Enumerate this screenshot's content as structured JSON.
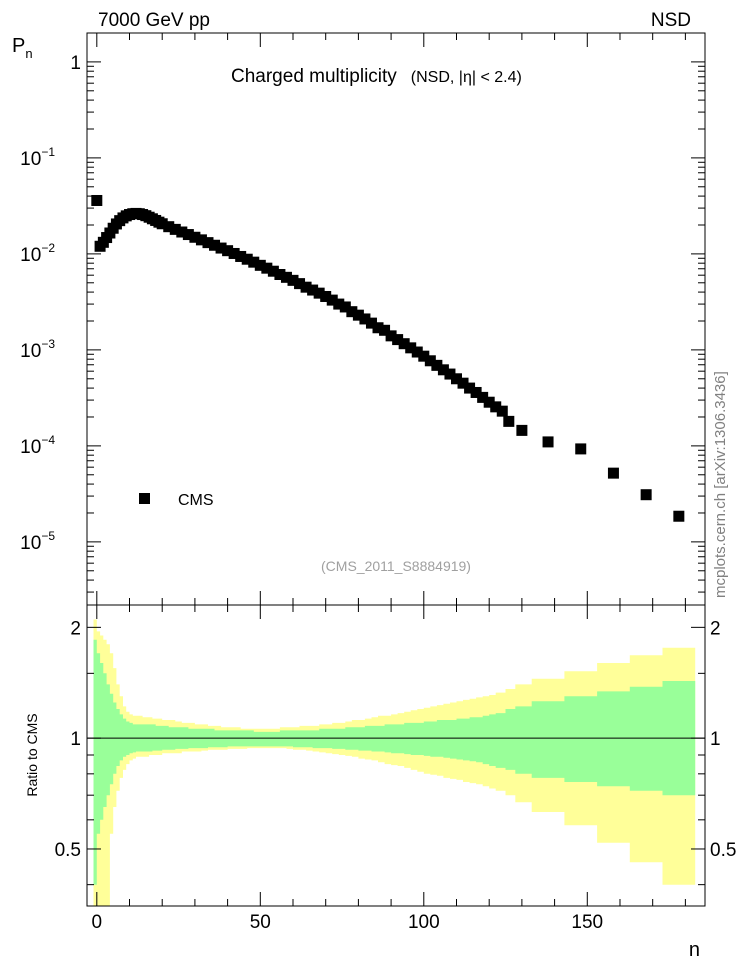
{
  "header": {
    "left_label": "7000 GeV pp",
    "right_label": "NSD"
  },
  "side_label": "mcplots.cern.ch [arXiv:1306.3436]",
  "main_panel": {
    "title_main": "Charged multiplicity",
    "title_sub": "(NSD, |η| < 2.4)",
    "analysis_tag": "(CMS_2011_S8884919)",
    "y_axis_label": {
      "base": "P",
      "sub": "n"
    },
    "y_ticks": [
      {
        "value": 1,
        "label": "1"
      },
      {
        "value": 0.1,
        "base": "10",
        "exp": "−1"
      },
      {
        "value": 0.01,
        "base": "10",
        "exp": "−2"
      },
      {
        "value": 0.001,
        "base": "10",
        "exp": "−3"
      },
      {
        "value": 0.0001,
        "base": "10",
        "exp": "−4"
      },
      {
        "value": 1e-05,
        "base": "10",
        "exp": "−5"
      }
    ],
    "legend_label": "CMS"
  },
  "ratio_panel": {
    "y_axis_label": "Ratio to CMS",
    "y_ticks": [
      "0.5",
      "1",
      "2"
    ],
    "x_ticks": [
      "0",
      "50",
      "100",
      "150"
    ],
    "x_axis_label": "n",
    "colors": {
      "inner_band": "#99ff99",
      "outer_band": "#ffff99",
      "reference": "#000000"
    }
  },
  "chart_data": {
    "type": "scatter",
    "title": "Charged multiplicity",
    "xlabel": "n",
    "ylabel": "P_n",
    "y_scale": "log",
    "xlim": [
      -3,
      186
    ],
    "ylim": [
      2.2e-06,
      2.0
    ],
    "legend_position": "lower-left",
    "series": [
      {
        "name": "CMS",
        "marker": "square",
        "color": "#000000",
        "x": [
          0,
          1,
          2,
          3,
          4,
          5,
          6,
          7,
          8,
          9,
          10,
          11,
          12,
          13,
          14,
          15,
          16,
          17,
          18,
          19,
          20,
          22,
          24,
          26,
          28,
          30,
          32,
          34,
          36,
          38,
          40,
          42,
          44,
          46,
          48,
          50,
          52,
          54,
          56,
          58,
          60,
          62,
          64,
          66,
          68,
          70,
          72,
          74,
          76,
          78,
          80,
          82,
          84,
          86,
          88,
          90,
          92,
          94,
          96,
          98,
          100,
          102,
          104,
          106,
          108,
          110,
          112,
          114,
          116,
          118,
          120,
          122,
          124,
          126,
          130,
          138,
          148,
          158,
          168,
          178
        ],
        "y": [
          0.036,
          0.012,
          0.0132,
          0.0148,
          0.0165,
          0.0185,
          0.0205,
          0.0222,
          0.0237,
          0.0249,
          0.0257,
          0.0262,
          0.0264,
          0.0262,
          0.0257,
          0.025,
          0.0241,
          0.0232,
          0.0223,
          0.0214,
          0.0206,
          0.0192,
          0.018,
          0.0169,
          0.0159,
          0.0149,
          0.014,
          0.0131,
          0.0123,
          0.0115,
          0.0108,
          0.0101,
          0.0094,
          0.0088,
          0.0082,
          0.0076,
          0.0071,
          0.0066,
          0.0061,
          0.0057,
          0.0053,
          0.0049,
          0.0045,
          0.0042,
          0.0039,
          0.0036,
          0.0033,
          0.003,
          0.0028,
          0.0025,
          0.0023,
          0.0021,
          0.0019,
          0.0017,
          0.0016,
          0.0014,
          0.00128,
          0.00116,
          0.00105,
          0.00095,
          0.00086,
          0.00077,
          0.00069,
          0.00062,
          0.00056,
          0.0005,
          0.00045,
          0.0004,
          0.00036,
          0.00032,
          0.000285,
          0.000255,
          0.00023,
          0.00018,
          0.000145,
          0.00011,
          9.3e-05,
          5.2e-05,
          3.1e-05,
          1.85e-05
        ]
      }
    ],
    "ratio": {
      "ylim": [
        0.35,
        2.3
      ],
      "y_scale": "log",
      "reference": 1,
      "edges": [
        -1,
        0,
        1,
        2,
        3,
        4,
        5,
        6,
        7,
        8,
        9,
        10,
        11,
        12,
        13,
        14,
        15,
        16,
        17,
        18,
        19,
        20,
        22,
        24,
        26,
        28,
        30,
        32,
        34,
        36,
        38,
        40,
        42,
        44,
        46,
        48,
        50,
        52,
        54,
        56,
        58,
        60,
        62,
        64,
        66,
        68,
        70,
        72,
        74,
        76,
        78,
        80,
        82,
        84,
        86,
        88,
        90,
        92,
        94,
        96,
        98,
        100,
        102,
        104,
        106,
        108,
        110,
        112,
        114,
        116,
        118,
        120,
        122,
        125,
        128,
        133,
        143,
        153,
        163,
        173,
        183
      ],
      "inner_upper": [
        1.85,
        1.7,
        1.6,
        1.5,
        1.4,
        1.32,
        1.25,
        1.2,
        1.16,
        1.13,
        1.11,
        1.1,
        1.09,
        1.09,
        1.09,
        1.09,
        1.09,
        1.09,
        1.09,
        1.08,
        1.08,
        1.08,
        1.07,
        1.07,
        1.07,
        1.06,
        1.06,
        1.06,
        1.06,
        1.05,
        1.05,
        1.05,
        1.05,
        1.05,
        1.05,
        1.04,
        1.04,
        1.04,
        1.04,
        1.05,
        1.05,
        1.05,
        1.05,
        1.05,
        1.05,
        1.06,
        1.06,
        1.06,
        1.06,
        1.07,
        1.07,
        1.07,
        1.08,
        1.08,
        1.08,
        1.09,
        1.09,
        1.09,
        1.1,
        1.1,
        1.1,
        1.11,
        1.11,
        1.12,
        1.12,
        1.12,
        1.13,
        1.13,
        1.14,
        1.14,
        1.15,
        1.16,
        1.17,
        1.2,
        1.22,
        1.26,
        1.3,
        1.34,
        1.38,
        1.43
      ],
      "inner_lower": [
        0.4,
        0.55,
        0.6,
        0.65,
        0.7,
        0.75,
        0.8,
        0.84,
        0.87,
        0.89,
        0.9,
        0.91,
        0.915,
        0.92,
        0.92,
        0.92,
        0.92,
        0.92,
        0.925,
        0.925,
        0.925,
        0.93,
        0.93,
        0.935,
        0.935,
        0.94,
        0.94,
        0.94,
        0.945,
        0.945,
        0.945,
        0.95,
        0.95,
        0.95,
        0.95,
        0.95,
        0.95,
        0.95,
        0.95,
        0.95,
        0.95,
        0.945,
        0.945,
        0.945,
        0.94,
        0.94,
        0.94,
        0.935,
        0.935,
        0.93,
        0.93,
        0.925,
        0.925,
        0.92,
        0.92,
        0.915,
        0.91,
        0.91,
        0.905,
        0.9,
        0.9,
        0.895,
        0.89,
        0.89,
        0.885,
        0.88,
        0.875,
        0.87,
        0.865,
        0.86,
        0.85,
        0.84,
        0.83,
        0.82,
        0.8,
        0.78,
        0.76,
        0.74,
        0.72,
        0.7
      ],
      "outer_upper": [
        2.1,
        1.95,
        1.9,
        1.85,
        1.8,
        1.7,
        1.55,
        1.4,
        1.3,
        1.22,
        1.18,
        1.16,
        1.15,
        1.15,
        1.15,
        1.14,
        1.14,
        1.14,
        1.13,
        1.13,
        1.13,
        1.12,
        1.12,
        1.11,
        1.1,
        1.1,
        1.09,
        1.09,
        1.08,
        1.08,
        1.07,
        1.07,
        1.07,
        1.06,
        1.06,
        1.06,
        1.06,
        1.06,
        1.06,
        1.07,
        1.07,
        1.07,
        1.08,
        1.08,
        1.08,
        1.09,
        1.09,
        1.1,
        1.1,
        1.11,
        1.12,
        1.12,
        1.13,
        1.14,
        1.15,
        1.15,
        1.16,
        1.17,
        1.18,
        1.19,
        1.2,
        1.21,
        1.22,
        1.23,
        1.24,
        1.25,
        1.26,
        1.27,
        1.28,
        1.29,
        1.3,
        1.31,
        1.33,
        1.36,
        1.4,
        1.45,
        1.52,
        1.6,
        1.68,
        1.76
      ],
      "outer_lower": [
        0.3,
        0.3,
        0.3,
        0.3,
        0.3,
        0.55,
        0.65,
        0.72,
        0.78,
        0.82,
        0.85,
        0.87,
        0.88,
        0.89,
        0.89,
        0.89,
        0.89,
        0.9,
        0.9,
        0.9,
        0.9,
        0.91,
        0.91,
        0.91,
        0.92,
        0.92,
        0.92,
        0.925,
        0.93,
        0.93,
        0.93,
        0.935,
        0.935,
        0.935,
        0.94,
        0.94,
        0.94,
        0.94,
        0.94,
        0.94,
        0.935,
        0.93,
        0.93,
        0.925,
        0.92,
        0.915,
        0.91,
        0.905,
        0.9,
        0.895,
        0.89,
        0.88,
        0.875,
        0.87,
        0.86,
        0.85,
        0.845,
        0.84,
        0.83,
        0.82,
        0.81,
        0.8,
        0.795,
        0.79,
        0.78,
        0.775,
        0.77,
        0.76,
        0.755,
        0.75,
        0.74,
        0.73,
        0.72,
        0.7,
        0.67,
        0.63,
        0.58,
        0.52,
        0.46,
        0.4
      ]
    }
  }
}
